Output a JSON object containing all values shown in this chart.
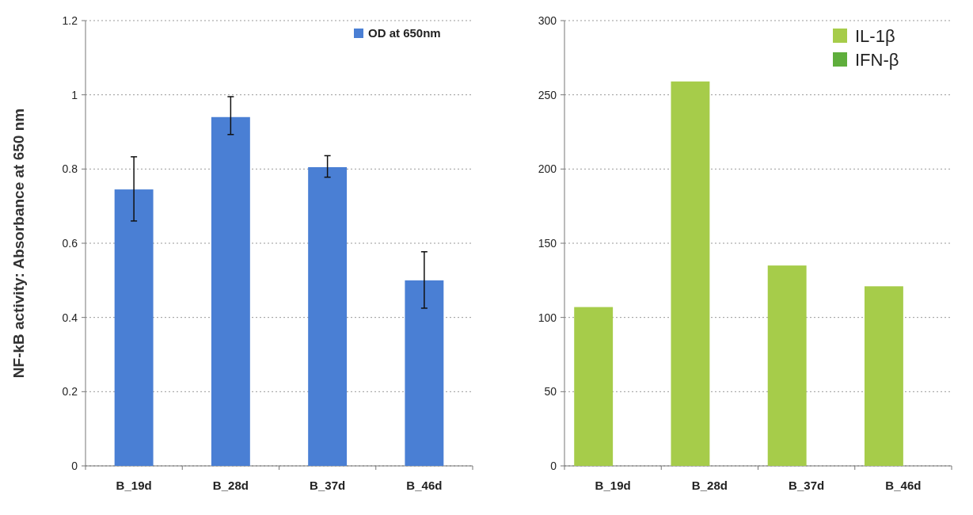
{
  "chart_data": [
    {
      "type": "bar",
      "ylabel": "NF-kB activity: Absorbance at 650 nm",
      "categories": [
        "B_19d",
        "B_28d",
        "B_37d",
        "B_46d"
      ],
      "series": [
        {
          "name": "OD at 650nm",
          "color": "#4a7fd4",
          "values": [
            0.745,
            0.94,
            0.805,
            0.5
          ],
          "errors": [
            [
              0.66,
              0.833
            ],
            [
              0.893,
              0.995
            ],
            [
              0.778,
              0.836
            ],
            [
              0.425,
              0.577
            ]
          ]
        }
      ],
      "ylim": [
        0,
        1.2
      ],
      "yticks": [
        0,
        0.2,
        0.4,
        0.6,
        0.8,
        1,
        1.2
      ],
      "grid": "y",
      "legend": "top right"
    },
    {
      "type": "bar",
      "categories": [
        "B_19d",
        "B_28d",
        "B_37d",
        "B_46d"
      ],
      "series": [
        {
          "name": "IL-1β",
          "color": "#a6cc4a",
          "values": [
            107,
            259,
            135,
            121
          ]
        },
        {
          "name": "IFN-β",
          "color": "#5fae3c",
          "values": [
            0,
            0,
            0,
            0
          ]
        }
      ],
      "ylim": [
        0,
        300
      ],
      "yticks": [
        0,
        50,
        100,
        150,
        200,
        250,
        300
      ],
      "grid": "y",
      "legend": "top right"
    }
  ]
}
